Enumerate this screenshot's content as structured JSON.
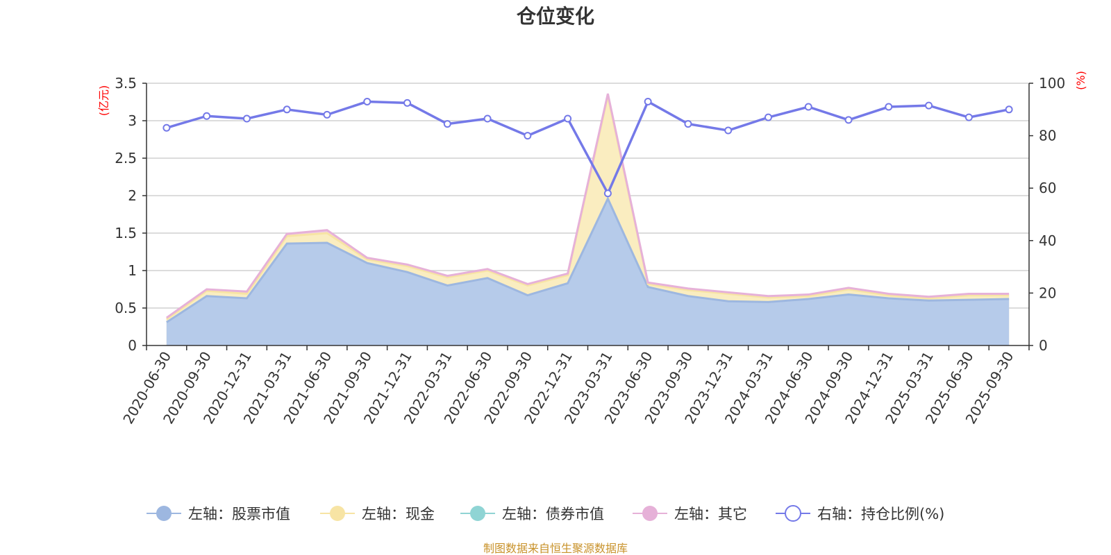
{
  "chart_data": {
    "type": "area",
    "title": "仓位变化",
    "left_unit": "(亿元)",
    "right_unit": "(%)",
    "categories": [
      "2020-06-30",
      "2020-09-30",
      "2020-12-31",
      "2021-03-31",
      "2021-06-30",
      "2021-09-30",
      "2021-12-31",
      "2022-03-31",
      "2022-06-30",
      "2022-09-30",
      "2022-12-31",
      "2023-03-31",
      "2023-06-30",
      "2023-09-30",
      "2023-12-31",
      "2024-03-31",
      "2024-06-30",
      "2024-09-30",
      "2024-12-31",
      "2025-03-31",
      "2025-06-30",
      "2025-09-30"
    ],
    "left_axis": {
      "min": 0,
      "max": 3.5,
      "ticks": [
        0,
        0.5,
        1,
        1.5,
        2,
        2.5,
        3,
        3.5
      ],
      "tick_labels": [
        "0",
        "0.5",
        "1",
        "1.5",
        "2",
        "2.5",
        "3",
        "3.5"
      ]
    },
    "right_axis": {
      "min": 0,
      "max": 100,
      "ticks": [
        0,
        20,
        40,
        60,
        80,
        100
      ],
      "tick_labels": [
        "0",
        "20",
        "40",
        "60",
        "80",
        "100"
      ]
    },
    "series": [
      {
        "name": "左轴：股票市值",
        "axis": "left",
        "color": "#9db7e0",
        "fill": "#b6cbea",
        "values": [
          0.31,
          0.66,
          0.63,
          1.36,
          1.37,
          1.1,
          0.98,
          0.8,
          0.9,
          0.67,
          0.83,
          1.96,
          0.78,
          0.66,
          0.59,
          0.58,
          0.62,
          0.68,
          0.63,
          0.6,
          0.61,
          0.62
        ]
      },
      {
        "name": "左轴：现金",
        "axis": "left",
        "color": "#f7e4a4",
        "fill": "#faedc0",
        "values": [
          0.04,
          0.07,
          0.06,
          0.1,
          0.13,
          0.05,
          0.08,
          0.11,
          0.1,
          0.13,
          0.11,
          1.37,
          0.04,
          0.08,
          0.1,
          0.06,
          0.04,
          0.07,
          0.04,
          0.03,
          0.06,
          0.05
        ]
      },
      {
        "name": "左轴：债券市值",
        "axis": "left",
        "color": "#8fd4d4",
        "fill": "#b6e4e4",
        "values": [
          0,
          0,
          0,
          0,
          0,
          0,
          0,
          0,
          0,
          0,
          0,
          0,
          0,
          0,
          0,
          0,
          0,
          0,
          0,
          0,
          0,
          0
        ]
      },
      {
        "name": "左轴：其它",
        "axis": "left",
        "color": "#e6b1d8",
        "fill": "#f0cce6",
        "values": [
          0.02,
          0.02,
          0.03,
          0.03,
          0.04,
          0.02,
          0.02,
          0.02,
          0.02,
          0.02,
          0.02,
          0.03,
          0.02,
          0.02,
          0.02,
          0.02,
          0.02,
          0.02,
          0.02,
          0.02,
          0.02,
          0.02
        ]
      },
      {
        "name": "右轴：持仓比例(%)",
        "axis": "right",
        "color": "#7479e8",
        "type": "line",
        "values": [
          83,
          87.5,
          86.5,
          90,
          88,
          93,
          92.5,
          84.5,
          86.5,
          80,
          86.5,
          58,
          93,
          84.5,
          82,
          87,
          91,
          86,
          91,
          91.5,
          87,
          90
        ]
      }
    ],
    "legend_position": "bottom-center",
    "grid": true
  },
  "source_text": "制图数据来自恒生聚源数据库"
}
